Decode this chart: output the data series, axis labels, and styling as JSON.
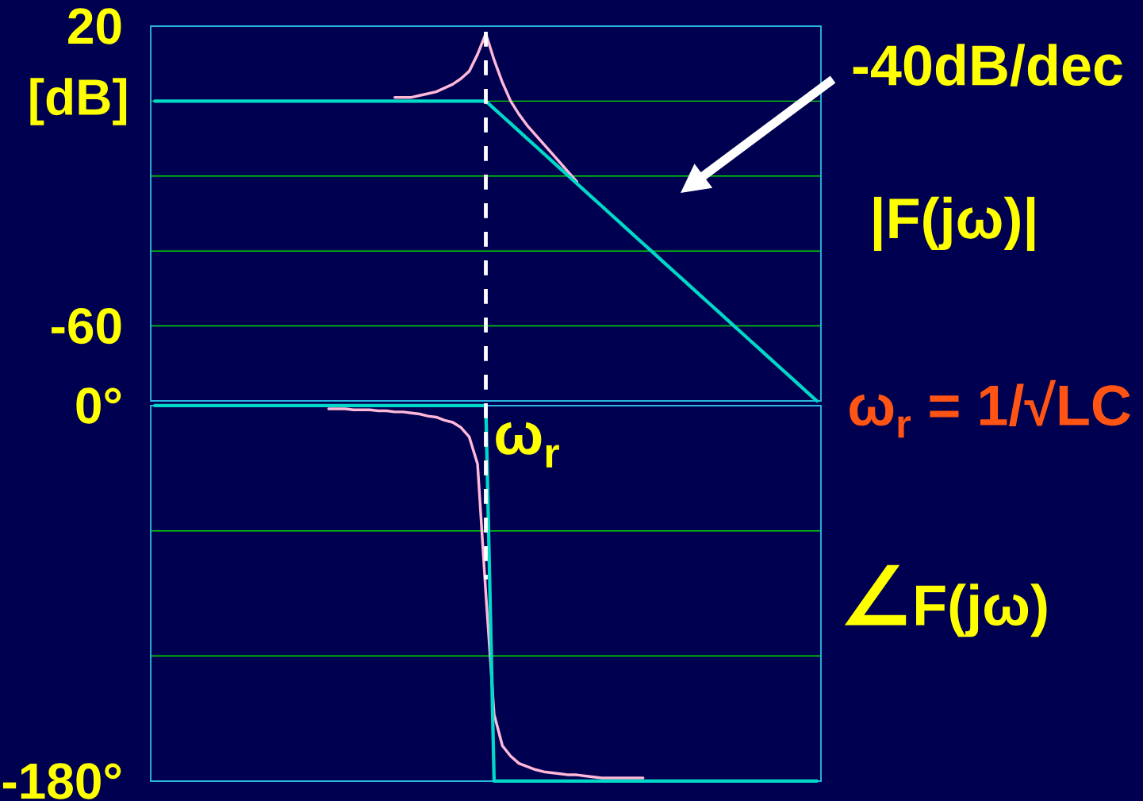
{
  "chart_data": [
    {
      "type": "line",
      "ylabel": "[dB]",
      "annotations": [
        "-40dB/dec",
        "|F(jω)|"
      ],
      "grid": "y",
      "tick_labels": "y",
      "categories": [
        null,
        null,
        null,
        null,
        null,
        null,
        null,
        null,
        null,
        null,
        null,
        null,
        null,
        null,
        null,
        null,
        null,
        null,
        null,
        null,
        null,
        null,
        null,
        null,
        null,
        null,
        null,
        null,
        null,
        null,
        null,
        null,
        null,
        null,
        null,
        null,
        null,
        null,
        null,
        null,
        null,
        null,
        null,
        null,
        null,
        null,
        null,
        null,
        null,
        null,
        null,
        null,
        null,
        null,
        null,
        null,
        null,
        null,
        null,
        null,
        null,
        null,
        null,
        null,
        null,
        null,
        null,
        null,
        null,
        null,
        null,
        null,
        null,
        null,
        null,
        null,
        null,
        null,
        null,
        null,
        null
      ],
      "ylim": [
        -80,
        20
      ],
      "yticks": [
        {
          "value": -80,
          "label": null
        },
        -60,
        {
          "value": -40,
          "label": null
        },
        {
          "value": -20,
          "label": null
        },
        {
          "value": 0,
          "label": null
        },
        20
      ],
      "series": [
        {
          "color": "#ffb8d8",
          "values": [
            null,
            null,
            null,
            null,
            null,
            null,
            null,
            null,
            null,
            null,
            null,
            null,
            null,
            null,
            null,
            null,
            null,
            null,
            null,
            null,
            null,
            null,
            null,
            null,
            null,
            null,
            null,
            null,
            null,
            1,
            1,
            1,
            1.5,
            2,
            2.5,
            3.5,
            4.5,
            6,
            8,
            12.5,
            18,
            11,
            5,
            0,
            -3.5,
            -6.5,
            -9,
            -11.5,
            -14,
            -16.5,
            -19,
            -21.5,
            null,
            null,
            null,
            null,
            null,
            null,
            null,
            null,
            null,
            null,
            null,
            null,
            null,
            null,
            null,
            null,
            null,
            null,
            null,
            null,
            null,
            null,
            null,
            null,
            null,
            null,
            null,
            null,
            null
          ]
        },
        {
          "color": "#00d8c8",
          "values": [
            0,
            0,
            0,
            0,
            0,
            0,
            0,
            0,
            0,
            0,
            0,
            0,
            0,
            0,
            0,
            0,
            0,
            0,
            0,
            0,
            0,
            0,
            0,
            0,
            0,
            0,
            0,
            0,
            0,
            0,
            0,
            0,
            0,
            0,
            0,
            0,
            0,
            0,
            0,
            0,
            0,
            -2,
            -4,
            -6,
            -8,
            -10,
            -12,
            -14,
            -16,
            -18,
            -20,
            -22,
            -24,
            -26,
            -28,
            -30,
            -32,
            -34,
            -36,
            -38,
            -40,
            -42,
            -44,
            -46,
            -48,
            -50,
            -52,
            -54,
            -56,
            -58,
            -60,
            -62,
            -64,
            -66,
            -68,
            -70,
            -72,
            -74,
            -76,
            -78,
            -80
          ]
        }
      ]
    },
    {
      "type": "line",
      "annotations": [
        "ω$_{r}$ = 1/√LC",
        "ω$_{r}$",
        "∠F(jω)"
      ],
      "grid": "y",
      "tick_labels": "y",
      "categories": [
        null,
        null,
        null,
        null,
        null,
        null,
        null,
        null,
        null,
        null,
        null,
        null,
        null,
        null,
        null,
        null,
        null,
        null,
        null,
        null,
        null,
        null,
        null,
        null,
        null,
        null,
        null,
        null,
        null,
        null,
        null,
        null,
        null,
        null,
        null,
        null,
        null,
        null,
        null,
        null,
        null,
        null,
        null,
        null,
        null,
        null,
        null,
        null,
        null,
        null,
        null,
        null,
        null,
        null,
        null,
        null,
        null,
        null,
        null,
        null,
        null,
        null,
        null,
        null,
        null,
        null,
        null,
        null,
        null,
        null,
        null,
        null,
        null,
        null,
        null,
        null,
        null,
        null,
        null,
        null,
        null
      ],
      "ylim": [
        -180,
        0
      ],
      "yticks": [
        {
          "value": -180,
          "label": "-180°"
        },
        {
          "value": -120,
          "label": null
        },
        {
          "value": -60,
          "label": null
        },
        {
          "value": 0,
          "label": "0°"
        }
      ],
      "series": [
        {
          "color": "#ffb8d8",
          "values": [
            null,
            null,
            null,
            null,
            null,
            null,
            null,
            null,
            null,
            null,
            null,
            null,
            null,
            null,
            null,
            null,
            null,
            null,
            null,
            null,
            null,
            -1.5,
            -1.5,
            -1.5,
            -2,
            -2,
            -2,
            -2.5,
            -2.5,
            -3,
            -3,
            -3.5,
            -4,
            -5,
            -5.5,
            -7,
            -8,
            -10.5,
            -15,
            -28,
            -90,
            -148,
            -163,
            -168,
            -171.5,
            -173,
            -174.5,
            -175.5,
            -176,
            -176.5,
            -177,
            -177,
            -177.5,
            -178,
            -178.5,
            -178.5,
            -178.5,
            -178.5,
            -178.5,
            -178.5,
            null,
            null,
            null,
            null,
            null,
            null,
            null,
            null,
            null,
            null,
            null,
            null,
            null,
            null,
            null,
            null,
            null,
            null,
            null,
            null,
            null
          ]
        },
        {
          "color": "#00d8c8",
          "values": [
            0,
            0,
            0,
            0,
            0,
            0,
            0,
            0,
            0,
            0,
            0,
            0,
            0,
            0,
            0,
            0,
            0,
            0,
            0,
            0,
            0,
            0,
            0,
            0,
            0,
            0,
            0,
            0,
            0,
            0,
            0,
            0,
            0,
            0,
            0,
            0,
            0,
            0,
            0,
            0,
            0,
            -180,
            -180,
            -180,
            -180,
            -180,
            -180,
            -180,
            -180,
            -180,
            -180,
            -180,
            -180,
            -180,
            -180,
            -180,
            -180,
            -180,
            -180,
            -180,
            -180,
            -180,
            -180,
            -180,
            -180,
            -180,
            -180,
            -180,
            -180,
            -180,
            -180,
            -180,
            -180,
            -180,
            -180,
            -180,
            -180,
            -180,
            -180,
            -180,
            -180
          ]
        }
      ]
    }
  ]
}
